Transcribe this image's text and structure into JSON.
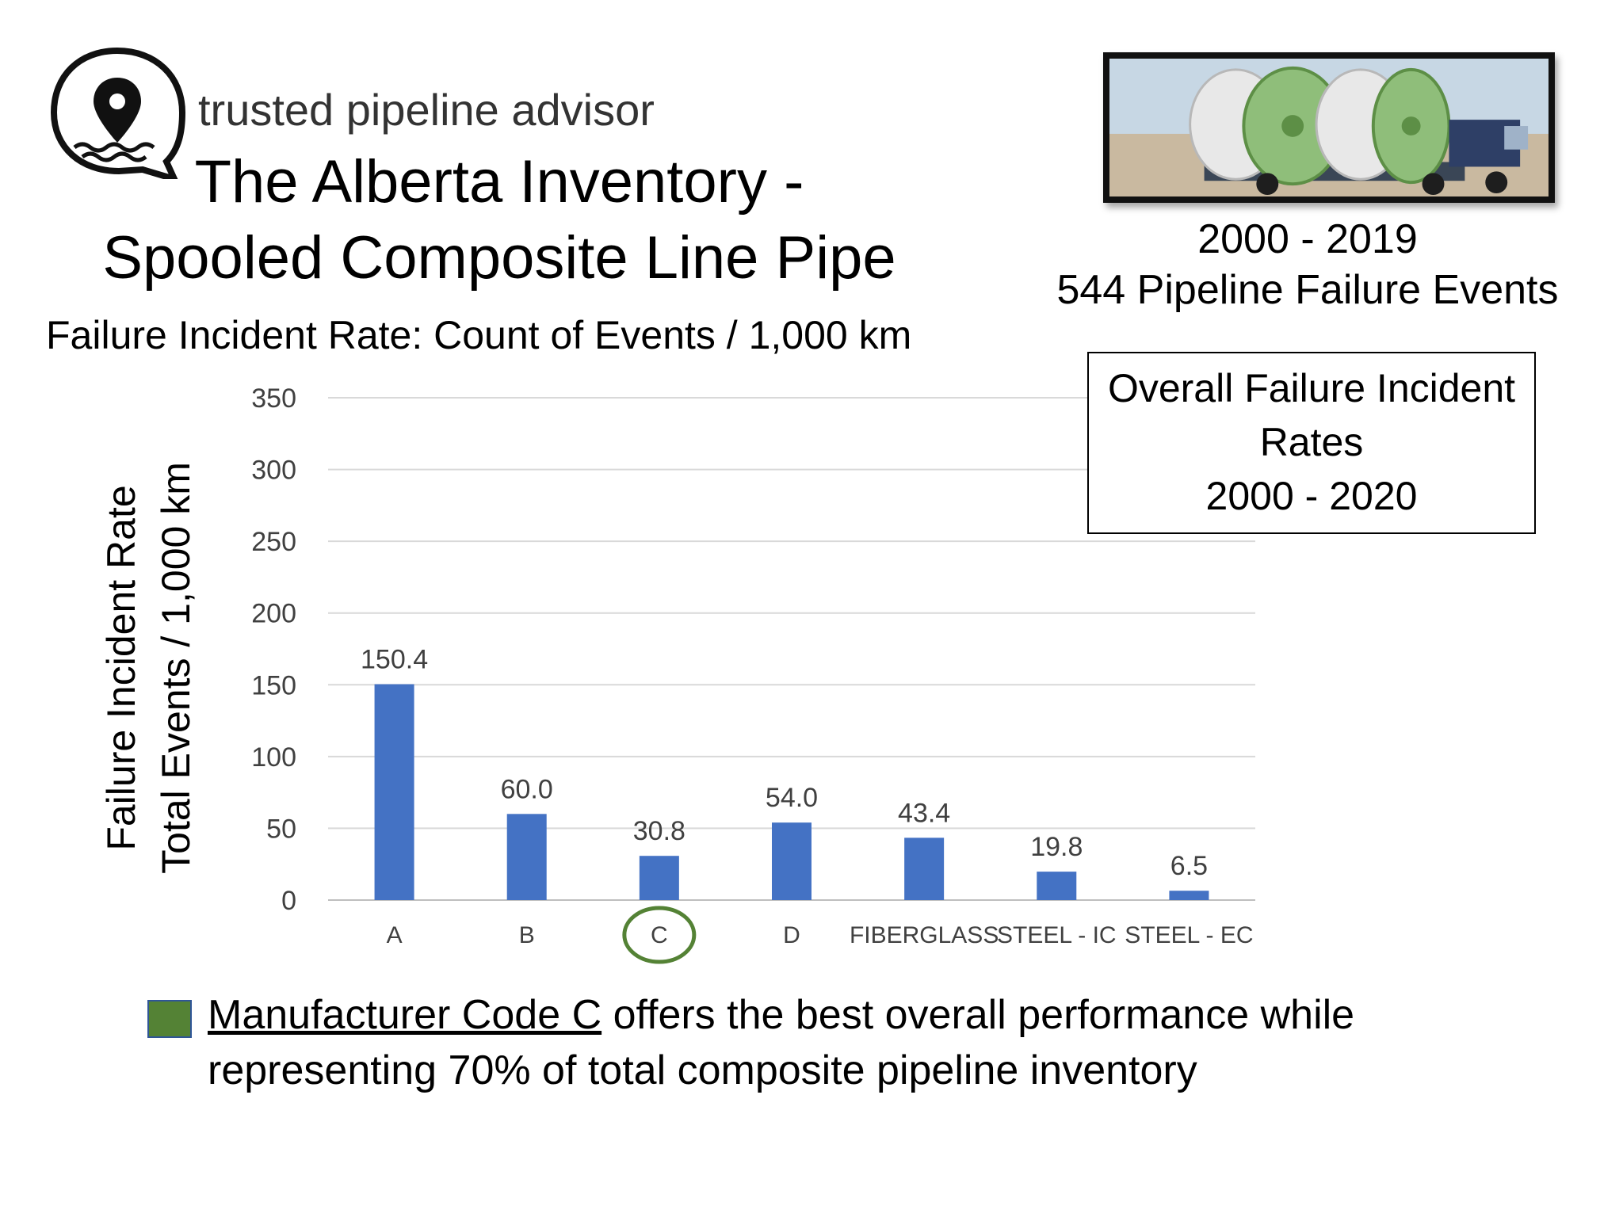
{
  "brand": {
    "name": "trusted pipeline advisor"
  },
  "header": {
    "title_line1": "The Alberta Inventory -",
    "title_line2": "Spooled Composite Line Pipe",
    "subtitle": "Failure Incident Rate:  Count of Events / 1,000 km"
  },
  "sidebar": {
    "period": "2000 - 2019",
    "events": "544 Pipeline Failure Events",
    "overall_box": {
      "line1": "Overall Failure Incident",
      "line2": "Rates",
      "line3": "2000 - 2020"
    }
  },
  "note": {
    "highlight": "Manufacturer Code C",
    "rest": " offers the best overall performance while representing 70% of total composite pipeline inventory",
    "swatch_color": "#548235"
  },
  "chart_data": {
    "type": "bar",
    "title": "",
    "ylabel_line1": "Failure Incident Rate",
    "ylabel_line2": "Total Events / 1,000 km",
    "categories": [
      "A",
      "B",
      "C",
      "D",
      "FIBERGLASS",
      "STEEL - IC",
      "STEEL - EC"
    ],
    "values": [
      150.4,
      60.0,
      30.8,
      54.0,
      43.4,
      19.8,
      6.5
    ],
    "value_labels": [
      "150.4",
      "60.0",
      "30.8",
      "54.0",
      "43.4",
      "19.8",
      "6.5"
    ],
    "ylim": [
      0,
      350
    ],
    "yticks": [
      0,
      50,
      100,
      150,
      200,
      250,
      300,
      350
    ],
    "grid": true,
    "bar_color": "#4472c4",
    "highlight_category": "C",
    "highlight_color": "#548235"
  }
}
